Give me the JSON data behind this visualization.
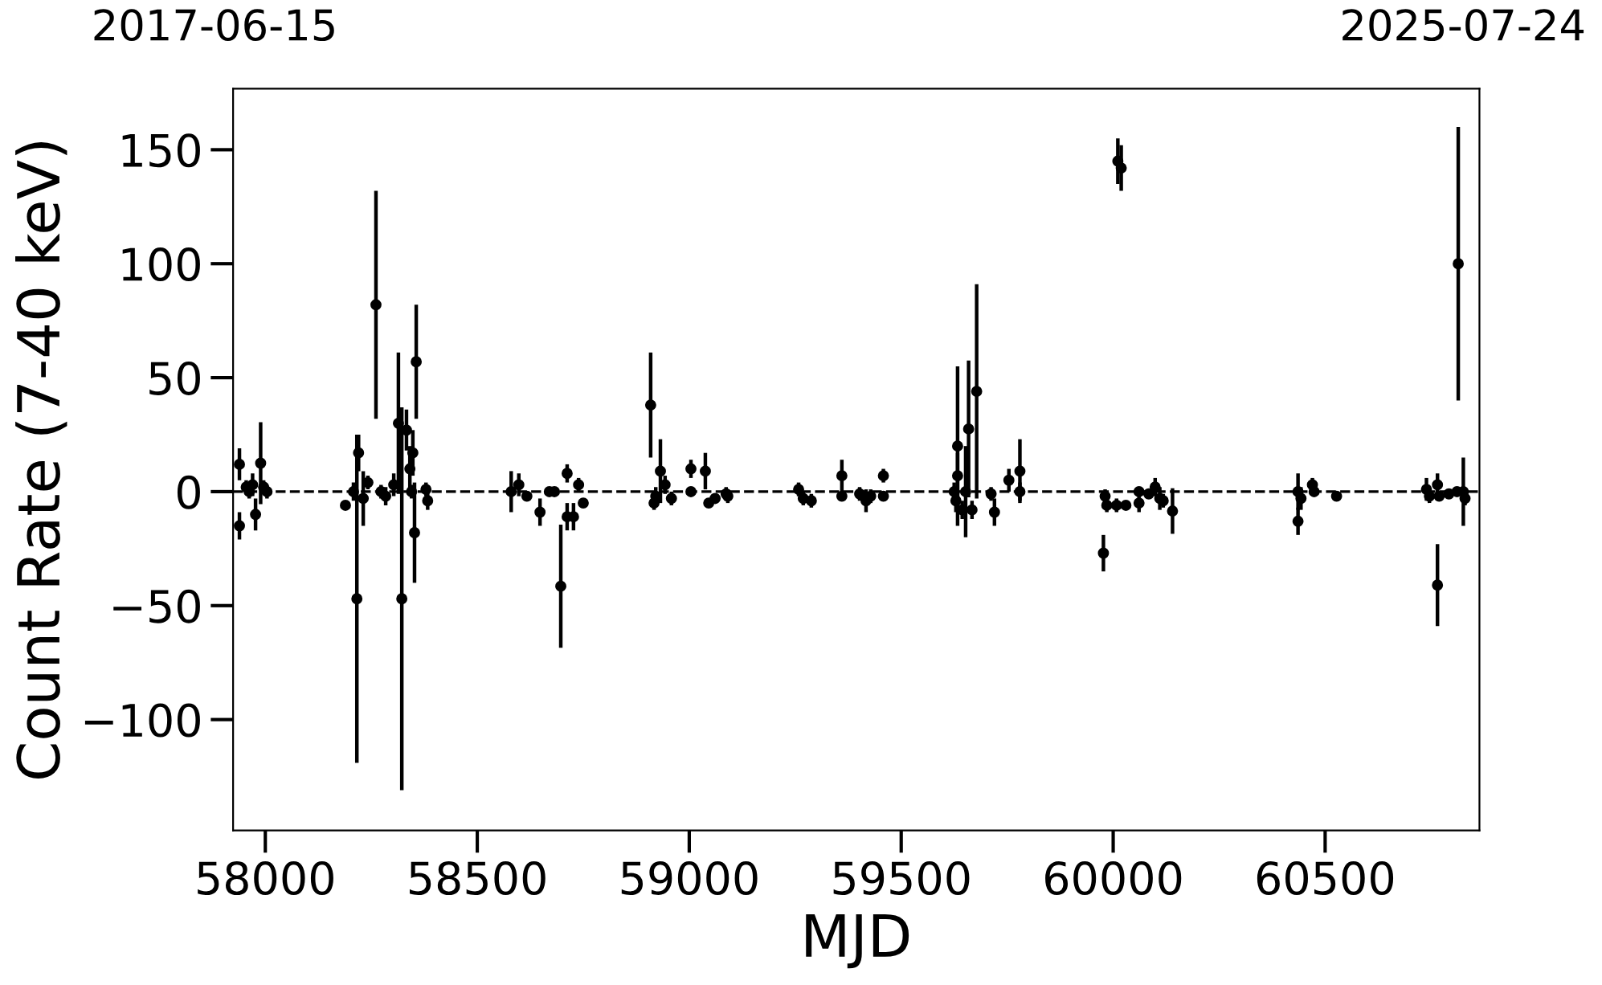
{
  "chart_data": {
    "type": "scatter",
    "xlabel": "MJD",
    "ylabel": "Count Rate (7-40 keV)",
    "annotations": [
      "2017-06-15",
      "2025-07-24"
    ],
    "xlim": [
      57924,
      60864
    ],
    "ylim": [
      -148.6,
      176.8
    ],
    "xticks": [
      58000,
      58500,
      59000,
      59500,
      60000,
      60500
    ],
    "yticks": [
      -100,
      -50,
      0,
      50,
      100,
      150
    ],
    "grid": false,
    "legend": false,
    "marker": "circle",
    "ref_lines": [
      {
        "axis": "y",
        "value": 0,
        "color": "#000000",
        "line_style": "dashed"
      }
    ],
    "series": [
      {
        "color": "#000000",
        "x": [
          57939,
          57939,
          57955,
          57962,
          57970,
          57977,
          57989,
          57996,
          58004,
          58189,
          58208,
          58216,
          58220,
          58231,
          58242,
          58261,
          58273,
          58284,
          58303,
          58314,
          58322,
          58333,
          58341,
          58345,
          58348,
          58352,
          58356,
          58379,
          58383,
          58580,
          58598,
          58617,
          58648,
          58670,
          58682,
          58697,
          58712,
          58712,
          58727,
          58739,
          58750,
          58909,
          58917,
          58921,
          58932,
          58943,
          58958,
          59004,
          59004,
          59038,
          59046,
          59061,
          59087,
          59091,
          59258,
          59269,
          59288,
          59360,
          59360,
          59402,
          59417,
          59428,
          59458,
          59458,
          59625,
          59633,
          59633,
          59629,
          59644,
          59652,
          59659,
          59667,
          59678,
          59712,
          59720,
          59754,
          59780,
          59780,
          59977,
          59981,
          59985,
          60008,
          60011,
          60019,
          60030,
          60061,
          60061,
          60084,
          60099,
          60110,
          60118,
          60140,
          60436,
          60436,
          60443,
          60470,
          60474,
          60527,
          60739,
          60746,
          60765,
          60765,
          60769,
          60792,
          60811,
          60814,
          60826,
          60830
        ],
        "values": [
          12,
          -15,
          2,
          0,
          3,
          -10,
          12.5,
          2,
          0,
          -6,
          0,
          -47,
          17,
          -3,
          4,
          82,
          0,
          -2,
          3,
          30,
          -47,
          27,
          10,
          0,
          17,
          -18,
          57,
          1,
          -4,
          0,
          3,
          -2,
          -9,
          0,
          0,
          -41.5,
          8,
          -11,
          -11,
          3,
          -5,
          38,
          -5,
          -2,
          9,
          3,
          -3,
          10,
          0,
          9,
          -5,
          -3,
          -1,
          -2,
          1,
          -3,
          -4,
          7,
          -2,
          -1,
          -4,
          -2,
          7,
          -2,
          0,
          20,
          7,
          -4,
          -8,
          0,
          27.5,
          -8,
          44,
          -1,
          -9,
          5,
          9,
          0,
          -27,
          -2,
          -6,
          -6,
          145,
          142,
          -6,
          -5,
          0,
          -1,
          2,
          -3,
          -4,
          -8.5,
          -13,
          0,
          -3,
          3,
          0,
          -2,
          1,
          -2,
          3,
          -41,
          -2,
          -1,
          0,
          100,
          0,
          -3
        ],
        "errors": [
          7,
          6,
          3,
          3,
          5,
          7,
          18,
          3,
          3,
          2,
          4,
          72,
          8,
          12,
          3,
          50,
          3,
          4,
          5,
          31,
          84,
          9,
          10,
          3,
          10,
          22,
          25,
          3,
          4,
          9,
          5,
          2,
          6,
          2,
          2,
          27,
          4,
          6,
          6,
          3,
          2,
          23,
          3,
          4,
          14,
          4,
          3,
          4,
          2,
          8,
          2,
          2,
          3,
          3,
          3,
          3,
          3,
          7,
          2,
          3,
          5,
          3,
          3,
          2,
          4,
          35,
          10,
          5,
          4,
          20,
          30,
          4,
          47,
          3,
          6,
          5,
          14,
          4,
          8,
          3,
          3,
          3,
          10,
          10,
          2,
          4,
          2,
          2,
          4,
          5,
          3,
          10,
          6,
          8,
          5,
          3,
          2,
          2,
          5,
          3,
          5,
          18,
          2,
          2,
          2,
          60,
          15,
          3
        ]
      }
    ]
  }
}
